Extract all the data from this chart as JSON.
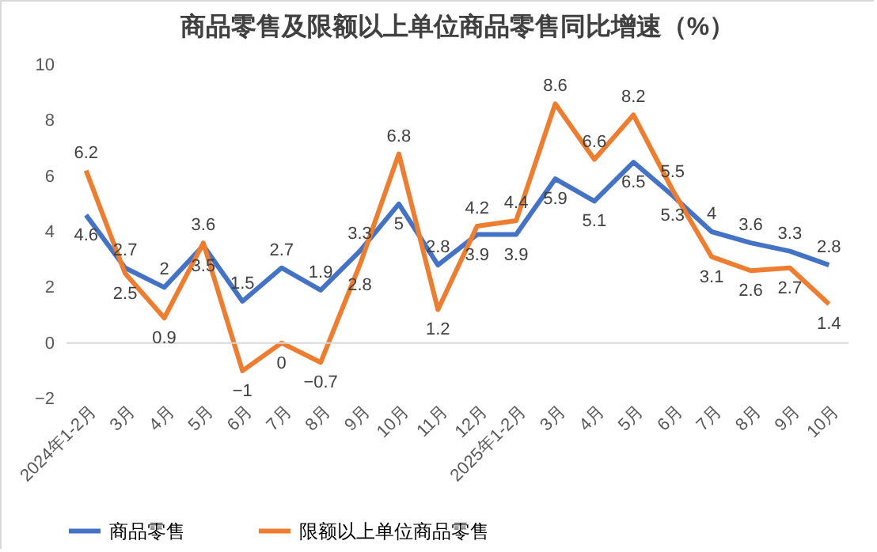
{
  "chart_data": {
    "type": "line",
    "title": "商品零售及限额以上单位商品零售同比增速（%）",
    "categories": [
      "2024年1-2月",
      "3月",
      "4月",
      "5月",
      "6月",
      "7月",
      "8月",
      "9月",
      "10月",
      "11月",
      "12月",
      "2025年1-2月",
      "3月",
      "4月",
      "5月",
      "6月",
      "7月",
      "8月",
      "9月",
      "10月"
    ],
    "series": [
      {
        "name": "商品零售",
        "color": "#4472c4",
        "values": [
          4.6,
          2.7,
          2,
          3.5,
          1.5,
          2.7,
          1.9,
          3.3,
          5,
          2.8,
          3.9,
          3.9,
          5.9,
          5.1,
          6.5,
          5.3,
          4,
          3.6,
          3.3,
          2.8
        ]
      },
      {
        "name": "限额以上单位商品零售",
        "color": "#ed7d31",
        "values": [
          6.2,
          2.5,
          0.9,
          3.6,
          -1,
          0,
          -0.7,
          2.8,
          6.8,
          1.2,
          4.2,
          4.4,
          8.6,
          6.6,
          8.2,
          5.5,
          3.1,
          2.6,
          2.7,
          1.4
        ]
      }
    ],
    "ylim": [
      -2,
      10
    ],
    "yticks": [
      -2,
      0,
      2,
      4,
      6,
      8,
      10
    ],
    "grid": false,
    "legend": "bottom",
    "data_labels": true,
    "marker": "none",
    "line_style": "solid",
    "ref_lines": [
      {
        "axis": "y",
        "value": 0,
        "color": "#d9d9d9"
      }
    ]
  }
}
